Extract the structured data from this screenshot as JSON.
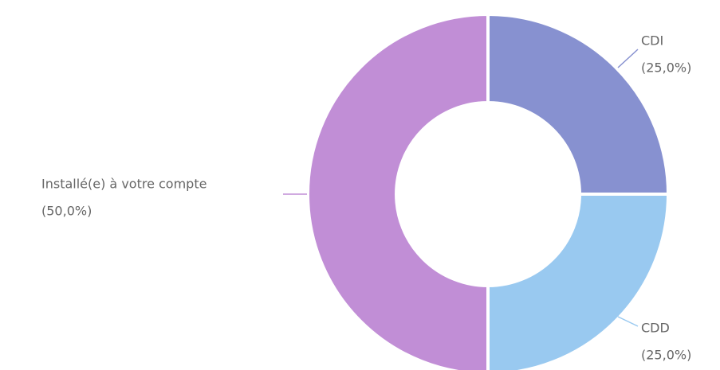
{
  "chart_data": {
    "type": "donut",
    "categories": [
      "CDI",
      "CDD",
      "Installé(e) à votre compte"
    ],
    "values": [
      25,
      25,
      50
    ],
    "value_labels": [
      "(25,0%)",
      "(25,0%)",
      "(50,0%)"
    ],
    "colors": [
      "#8791d0",
      "#99c9f0",
      "#c18ed6"
    ]
  }
}
